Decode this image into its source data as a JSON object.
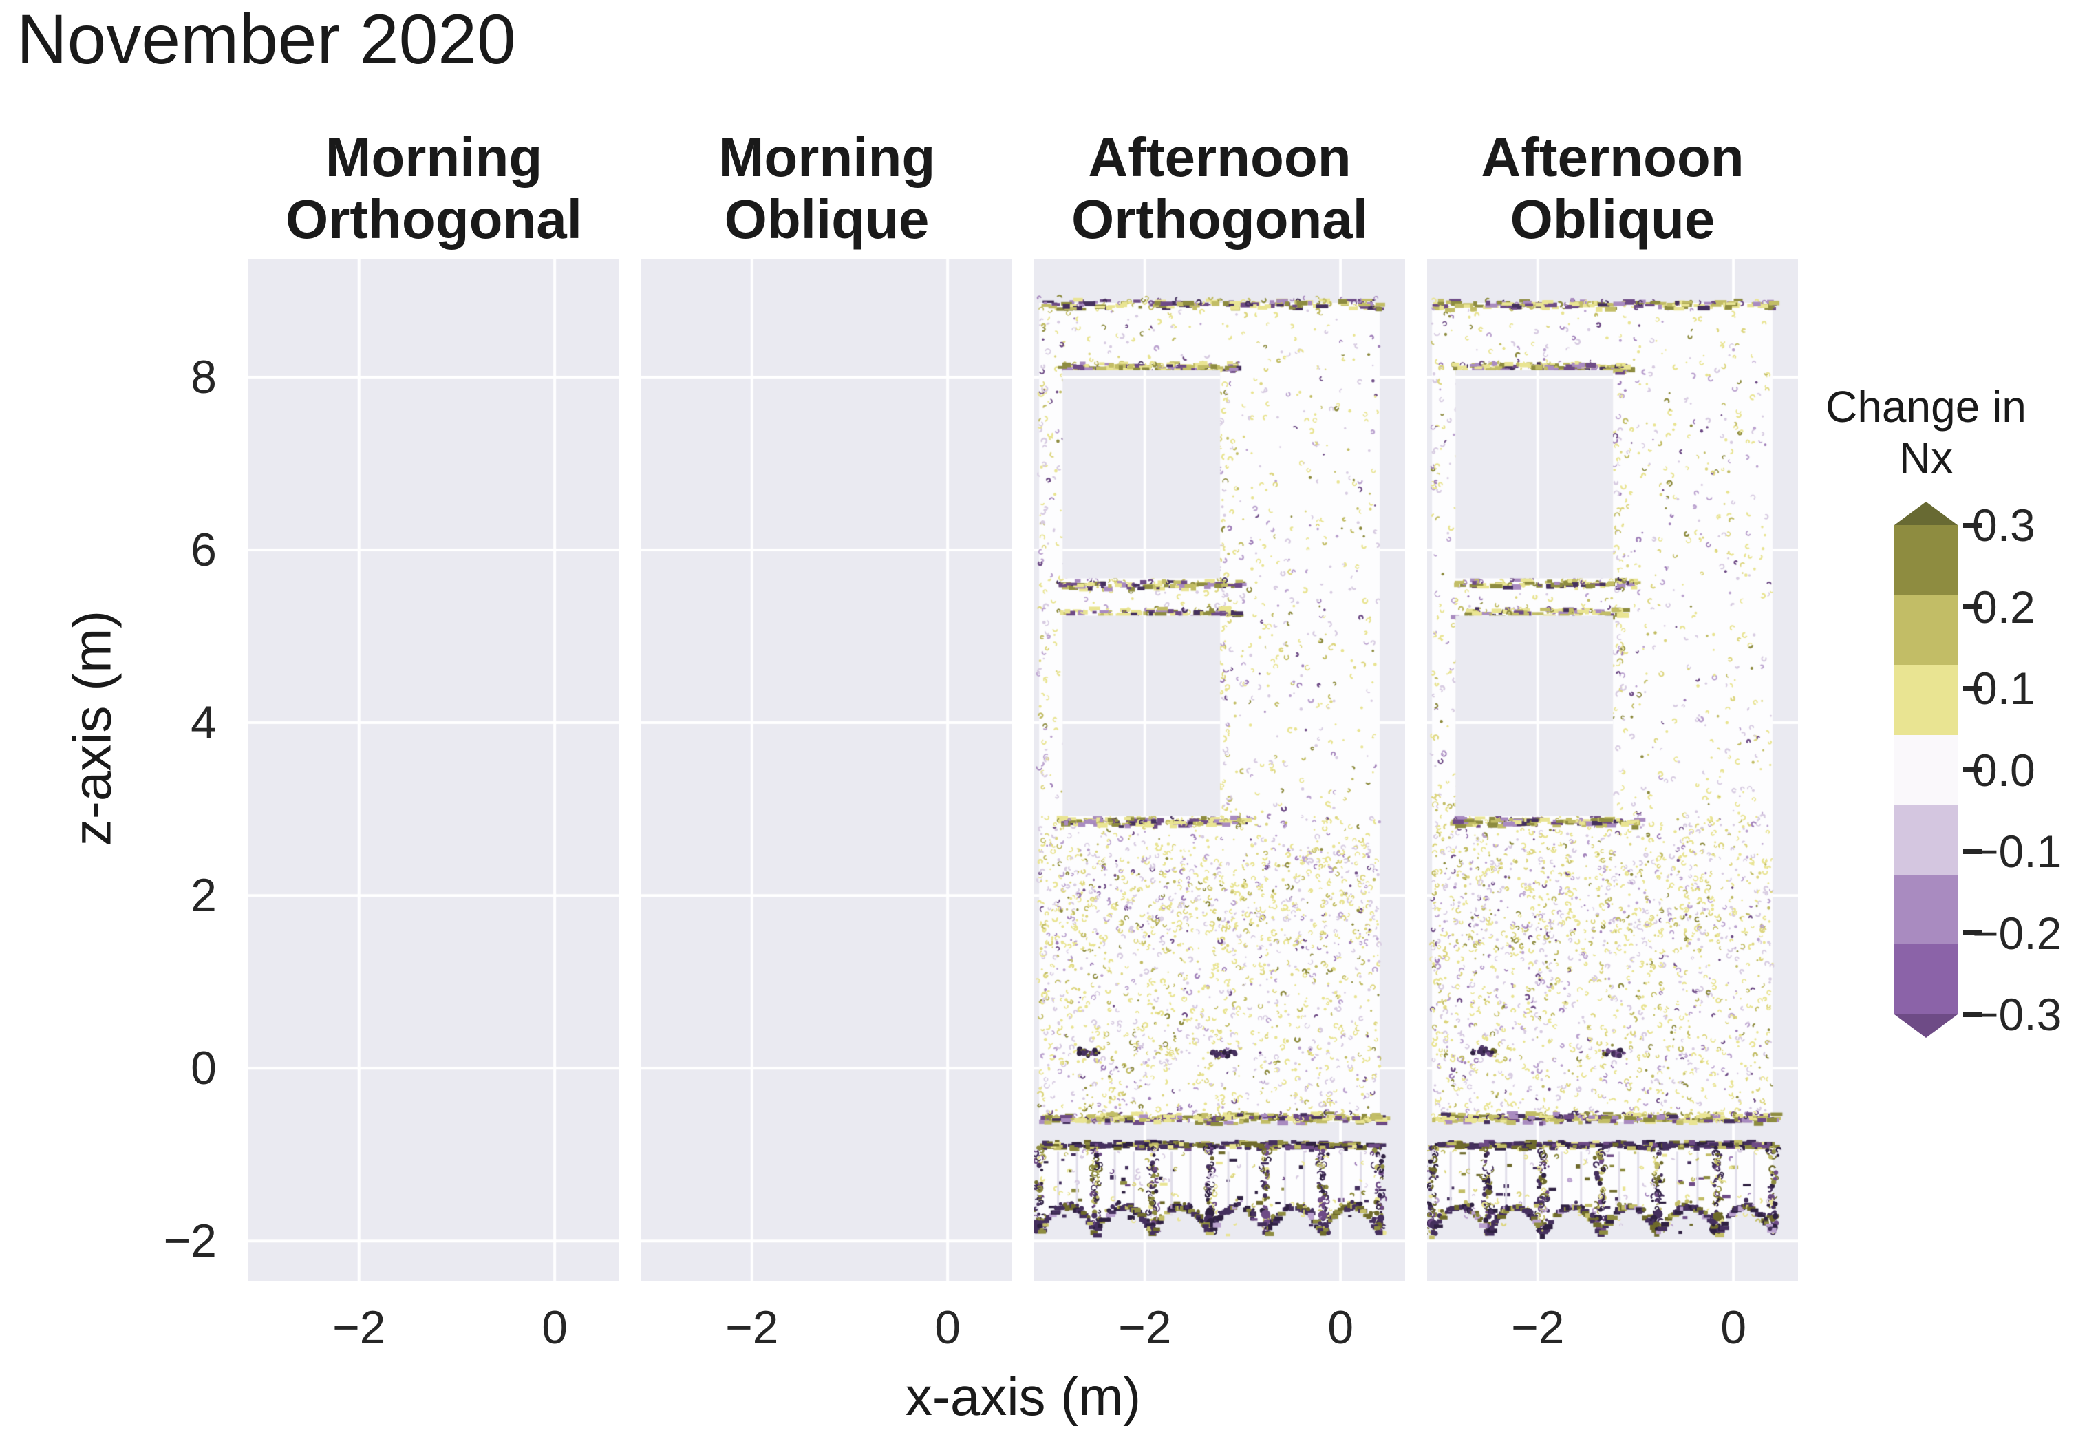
{
  "title": "November 2020",
  "axes": {
    "x_label": "x-axis (m)",
    "y_label": "z-axis (m)",
    "x_tick_labels": [
      "−2",
      "0"
    ],
    "y_tick_labels": [
      "8",
      "6",
      "4",
      "2",
      "0",
      "−2"
    ]
  },
  "panels": [
    {
      "id": "morning-orthogonal",
      "title_line1": "Morning",
      "title_line2": "Orthogonal",
      "data_present": false,
      "seed": 3
    },
    {
      "id": "morning-oblique",
      "title_line1": "Morning",
      "title_line2": "Oblique",
      "data_present": false,
      "seed": 5
    },
    {
      "id": "afternoon-orthogonal",
      "title_line1": "Afternoon",
      "title_line2": "Orthogonal",
      "data_present": true,
      "seed": 7
    },
    {
      "id": "afternoon-oblique",
      "title_line1": "Afternoon",
      "title_line2": "Oblique",
      "data_present": true,
      "seed": 41
    }
  ],
  "colorbar": {
    "title_line1": "Change in",
    "title_line2": "Nx",
    "tick_labels": [
      "0.3",
      "0.2",
      "0.1",
      "0.0",
      "−0.1",
      "−0.2",
      "−0.3"
    ],
    "segment_colors": [
      "#8e8c40",
      "#c2bd66",
      "#e9e492",
      "#faf8fb",
      "#d4c6e0",
      "#a98bc0",
      "#8b63a8"
    ],
    "arrow_top_color": "#686a33",
    "arrow_bottom_color": "#6e4b86"
  },
  "colors": {
    "page_bg": "#ffffff",
    "panel_bg": "#eaeaf1",
    "grid": "#ffffff",
    "facade": "#fdfdfe",
    "baluster_line": "#e1deea",
    "speckle_palette": [
      [
        "#e9e492",
        36
      ],
      [
        "#ddd67f",
        10
      ],
      [
        "#c2bd66",
        8
      ],
      [
        "#d8cce2",
        24
      ],
      [
        "#bba2cf",
        9
      ],
      [
        "#8e8c40",
        5
      ],
      [
        "#a07fb9",
        4
      ],
      [
        "#6e4b86",
        4
      ]
    ],
    "band_palette": [
      [
        "#c2bd66",
        22
      ],
      [
        "#e9e492",
        26
      ],
      [
        "#8e8c40",
        16
      ],
      [
        "#a98bc0",
        12
      ],
      [
        "#6e4b86",
        13
      ],
      [
        "#45305e",
        11
      ]
    ],
    "dark_palette": [
      [
        "#45305e",
        28
      ],
      [
        "#2f2142",
        16
      ],
      [
        "#6e4b86",
        13
      ],
      [
        "#6e6a2b",
        16
      ],
      [
        "#8e8c40",
        10
      ],
      [
        "#c2bd66",
        10
      ],
      [
        "#e9e492",
        7
      ]
    ],
    "arc_palette": [
      [
        "#45305e",
        38
      ],
      [
        "#2f2142",
        18
      ],
      [
        "#6e6a2b",
        18
      ],
      [
        "#8e8c40",
        12
      ],
      [
        "#c2bd66",
        8
      ],
      [
        "#bba2cf",
        6
      ]
    ],
    "smudge_palette": [
      [
        "#45305e",
        45
      ],
      [
        "#2f2142",
        25
      ],
      [
        "#6e4b86",
        20
      ],
      [
        "#6e6a2b",
        10
      ]
    ]
  },
  "chart_data": {
    "type": "heatmap",
    "title": "November 2020",
    "xlabel": "x-axis (m)",
    "ylabel": "z-axis (m)",
    "xlim": [
      -3.13,
      0.66
    ],
    "ylim": [
      -2.46,
      9.37
    ],
    "x_ticks": [
      -2,
      0
    ],
    "y_ticks": [
      8,
      6,
      4,
      2,
      0,
      -2
    ],
    "grid": true,
    "legend_position": "right",
    "colorbar": {
      "label": "Change in Nx",
      "ticks": [
        0.3,
        0.2,
        0.1,
        0.0,
        -0.1,
        -0.2,
        -0.3
      ],
      "extend": "both",
      "n_bins": 7,
      "bin_colors_top_to_bottom": [
        "#8e8c40",
        "#c2bd66",
        "#e9e492",
        "#faf8fb",
        "#d4c6e0",
        "#a98bc0",
        "#8b63a8"
      ]
    },
    "subplots": [
      {
        "title": "Morning Orthogonal",
        "data_present": false,
        "note": "empty axes, grid only"
      },
      {
        "title": "Morning Oblique",
        "data_present": false,
        "note": "empty axes, grid only"
      },
      {
        "title": "Afternoon Orthogonal",
        "data_present": true,
        "note": "building facade point cloud; change in Nx ~0 (white) with sparse ±0.1 speckles; strong ±0.2-0.3 noise at window edges and balcony balustrade",
        "facade": {
          "x": [
            -3.08,
            0.4
          ],
          "z_top": 8.86,
          "body_bottom": -0.62,
          "windows": [
            {
              "x": [
                -2.84,
                -1.23
              ],
              "z": [
                5.67,
                8.08
              ]
            },
            {
              "x": [
                -2.84,
                -1.23
              ],
              "z": [
                2.92,
                5.24
              ]
            }
          ],
          "noise_bands": [
            {
              "z": 8.86,
              "x": [
                -3.08,
                0.4
              ],
              "n": 170
            },
            {
              "z": 8.13,
              "x": [
                -2.9,
                -1.08
              ],
              "n": 160
            },
            {
              "z": 5.62,
              "x": [
                -2.9,
                -1.02
              ],
              "n": 110
            },
            {
              "z": 5.29,
              "x": [
                -2.9,
                -1.08
              ],
              "n": 95
            },
            {
              "z": 2.87,
              "x": [
                -2.9,
                -0.98
              ],
              "n": 140
            },
            {
              "z": -0.56,
              "x": [
                -3.08,
                0.4
              ],
              "n": 300
            }
          ],
          "noise_columns": [
            {
              "x": -3.03,
              "z": [
                -0.55,
                8.8
              ],
              "n": 70
            },
            {
              "x": -1.17,
              "z": [
                3.0,
                8.0
              ],
              "n": 55
            }
          ],
          "smudges": [
            {
              "x": -2.6,
              "z": 0.18
            },
            {
              "x": -1.22,
              "z": 0.18
            }
          ],
          "speckle_regions": [
            {
              "x": [
                -3.08,
                0.4
              ],
              "z": [
                2.92,
                8.8
              ],
              "n": 850
            },
            {
              "x": [
                -3.08,
                0.4
              ],
              "z": [
                -0.62,
                2.92
              ],
              "n": 1500
            },
            {
              "x": [
                -3.08,
                0.4
              ],
              "z": [
                1.35,
                2.55
              ],
              "n": 280
            }
          ],
          "balustrade": {
            "z_top": -0.87,
            "z_bottom": -1.93,
            "arc_apex": -1.6,
            "posts": [
              -3.08,
              -2.5,
              -1.92,
              -1.34,
              -0.76,
              -0.18,
              0.4
            ]
          }
        }
      },
      {
        "title": "Afternoon Oblique",
        "data_present": true,
        "note": "same facade structure as Afternoon Orthogonal",
        "facade": {
          "x": [
            -3.08,
            0.4
          ],
          "z_top": 8.86,
          "body_bottom": -0.62,
          "windows": [
            {
              "x": [
                -2.84,
                -1.23
              ],
              "z": [
                5.67,
                8.08
              ]
            },
            {
              "x": [
                -2.84,
                -1.23
              ],
              "z": [
                2.92,
                5.24
              ]
            }
          ],
          "noise_bands": [
            {
              "z": 8.86,
              "x": [
                -3.08,
                0.4
              ],
              "n": 170
            },
            {
              "z": 8.13,
              "x": [
                -2.9,
                -1.08
              ],
              "n": 160
            },
            {
              "z": 5.62,
              "x": [
                -2.9,
                -1.02
              ],
              "n": 110
            },
            {
              "z": 5.29,
              "x": [
                -2.9,
                -1.08
              ],
              "n": 95
            },
            {
              "z": 2.87,
              "x": [
                -2.9,
                -0.98
              ],
              "n": 140
            },
            {
              "z": -0.56,
              "x": [
                -3.08,
                0.4
              ],
              "n": 300
            }
          ],
          "noise_columns": [
            {
              "x": -3.03,
              "z": [
                -0.55,
                8.8
              ],
              "n": 70
            },
            {
              "x": -1.17,
              "z": [
                3.0,
                8.0
              ],
              "n": 55
            }
          ],
          "smudges": [
            {
              "x": -2.56,
              "z": 0.2
            },
            {
              "x": -1.25,
              "z": 0.18
            }
          ],
          "speckle_regions": [
            {
              "x": [
                -3.08,
                0.4
              ],
              "z": [
                2.92,
                8.8
              ],
              "n": 850
            },
            {
              "x": [
                -3.08,
                0.4
              ],
              "z": [
                -0.62,
                2.92
              ],
              "n": 1500
            },
            {
              "x": [
                -3.08,
                0.4
              ],
              "z": [
                1.35,
                2.55
              ],
              "n": 280
            }
          ],
          "balustrade": {
            "z_top": -0.87,
            "z_bottom": -1.93,
            "arc_apex": -1.6,
            "posts": [
              -3.08,
              -2.51,
              -1.95,
              -1.36,
              -0.78,
              -0.16,
              0.4
            ]
          }
        }
      }
    ]
  }
}
